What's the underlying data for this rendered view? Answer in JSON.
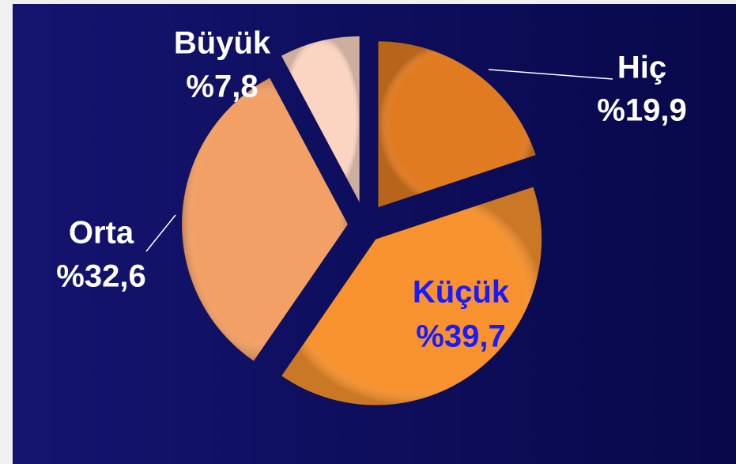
{
  "chart_data": {
    "type": "pie",
    "categories": [
      "Hiç",
      "Küçük",
      "Orta",
      "Büyük"
    ],
    "values": [
      19.9,
      39.7,
      32.6,
      7.8
    ],
    "value_labels": [
      "%19,9",
      "%39,7",
      "%32,6",
      "%7,8"
    ],
    "colors": [
      "#e07b22",
      "#f7922e",
      "#f3a066",
      "#fbd5c2"
    ],
    "label_colors": [
      "#ffffff",
      "#1a1aff",
      "#ffffff",
      "#ffffff"
    ]
  }
}
